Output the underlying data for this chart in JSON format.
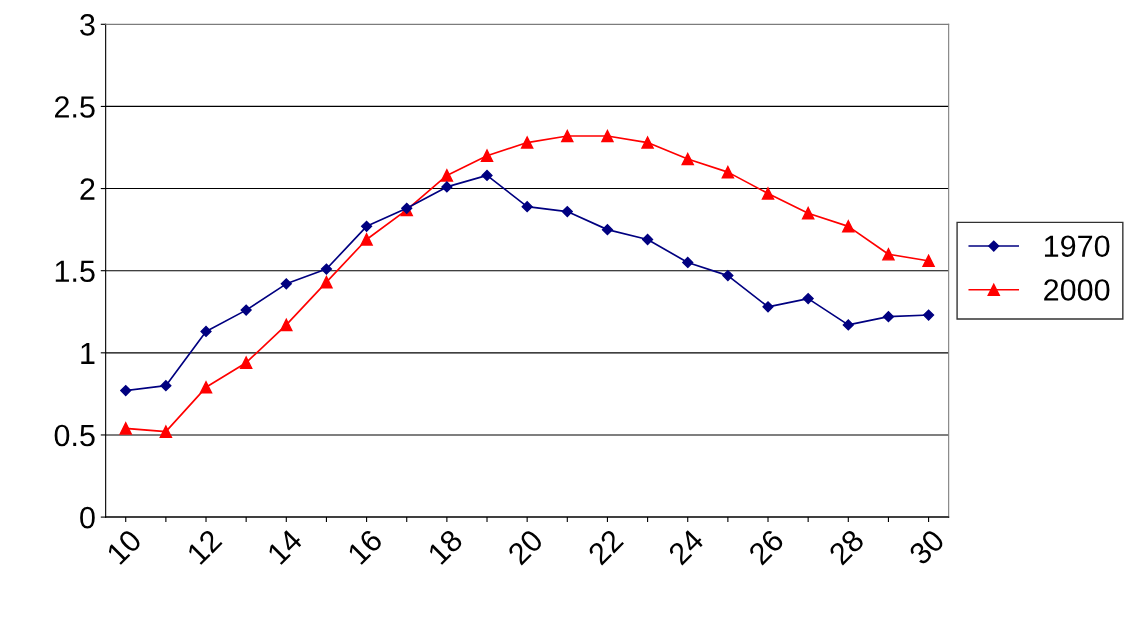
{
  "chart_data": {
    "type": "line",
    "categories": [
      "10",
      null,
      "12",
      null,
      "14",
      null,
      "16",
      null,
      "18",
      null,
      "20",
      null,
      "22",
      null,
      "24",
      null,
      "26",
      null,
      "28",
      null,
      "30"
    ],
    "series": [
      {
        "name": "1970",
        "color": "#000080",
        "marker": "diamond",
        "values": [
          0.77,
          0.8,
          1.13,
          1.26,
          1.42,
          1.51,
          1.77,
          1.88,
          2.01,
          2.08,
          1.89,
          1.86,
          1.75,
          1.69,
          1.55,
          1.47,
          1.28,
          1.33,
          1.17,
          1.22,
          1.23
        ]
      },
      {
        "name": "2000",
        "color": "#ff0000",
        "marker": "triangle",
        "values": [
          0.54,
          0.52,
          0.79,
          0.94,
          1.17,
          1.43,
          1.69,
          1.87,
          2.08,
          2.2,
          2.28,
          2.32,
          2.32,
          2.28,
          2.18,
          2.1,
          1.97,
          1.85,
          1.77,
          1.6,
          1.56
        ]
      }
    ],
    "ylim": [
      0,
      3
    ],
    "yticks": [
      0,
      0.5,
      1,
      1.5,
      2,
      2.5,
      3
    ],
    "grid": "y",
    "legend": "right",
    "line_style": "solid"
  }
}
